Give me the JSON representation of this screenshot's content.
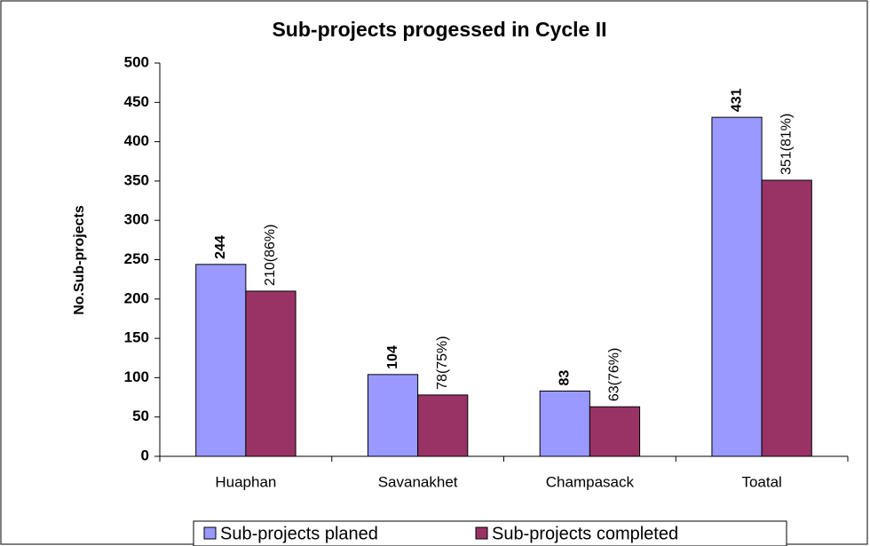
{
  "chart_data": {
    "type": "bar",
    "title": "Sub-projects progessed in Cycle II",
    "y_label": "No.Sub-projects",
    "categories": [
      "Huaphan",
      "Savanakhet",
      "Champasack",
      "Toatal"
    ],
    "series": [
      {
        "name": "Sub-projects planed",
        "color": "#9999ff",
        "values": [
          244,
          104,
          83,
          431
        ]
      },
      {
        "name": "Sub-projects completed",
        "color": "#993366",
        "values": [
          210,
          78,
          63,
          351
        ],
        "value_labels": [
          "210(86%)",
          "78(75%)",
          "63(76%)",
          "351(81%)"
        ]
      }
    ],
    "ylim": [
      0,
      500
    ],
    "yticks": [
      0,
      50,
      100,
      150,
      200,
      250,
      300,
      350,
      400,
      450,
      500
    ],
    "grid": false,
    "legend": "bottom"
  }
}
